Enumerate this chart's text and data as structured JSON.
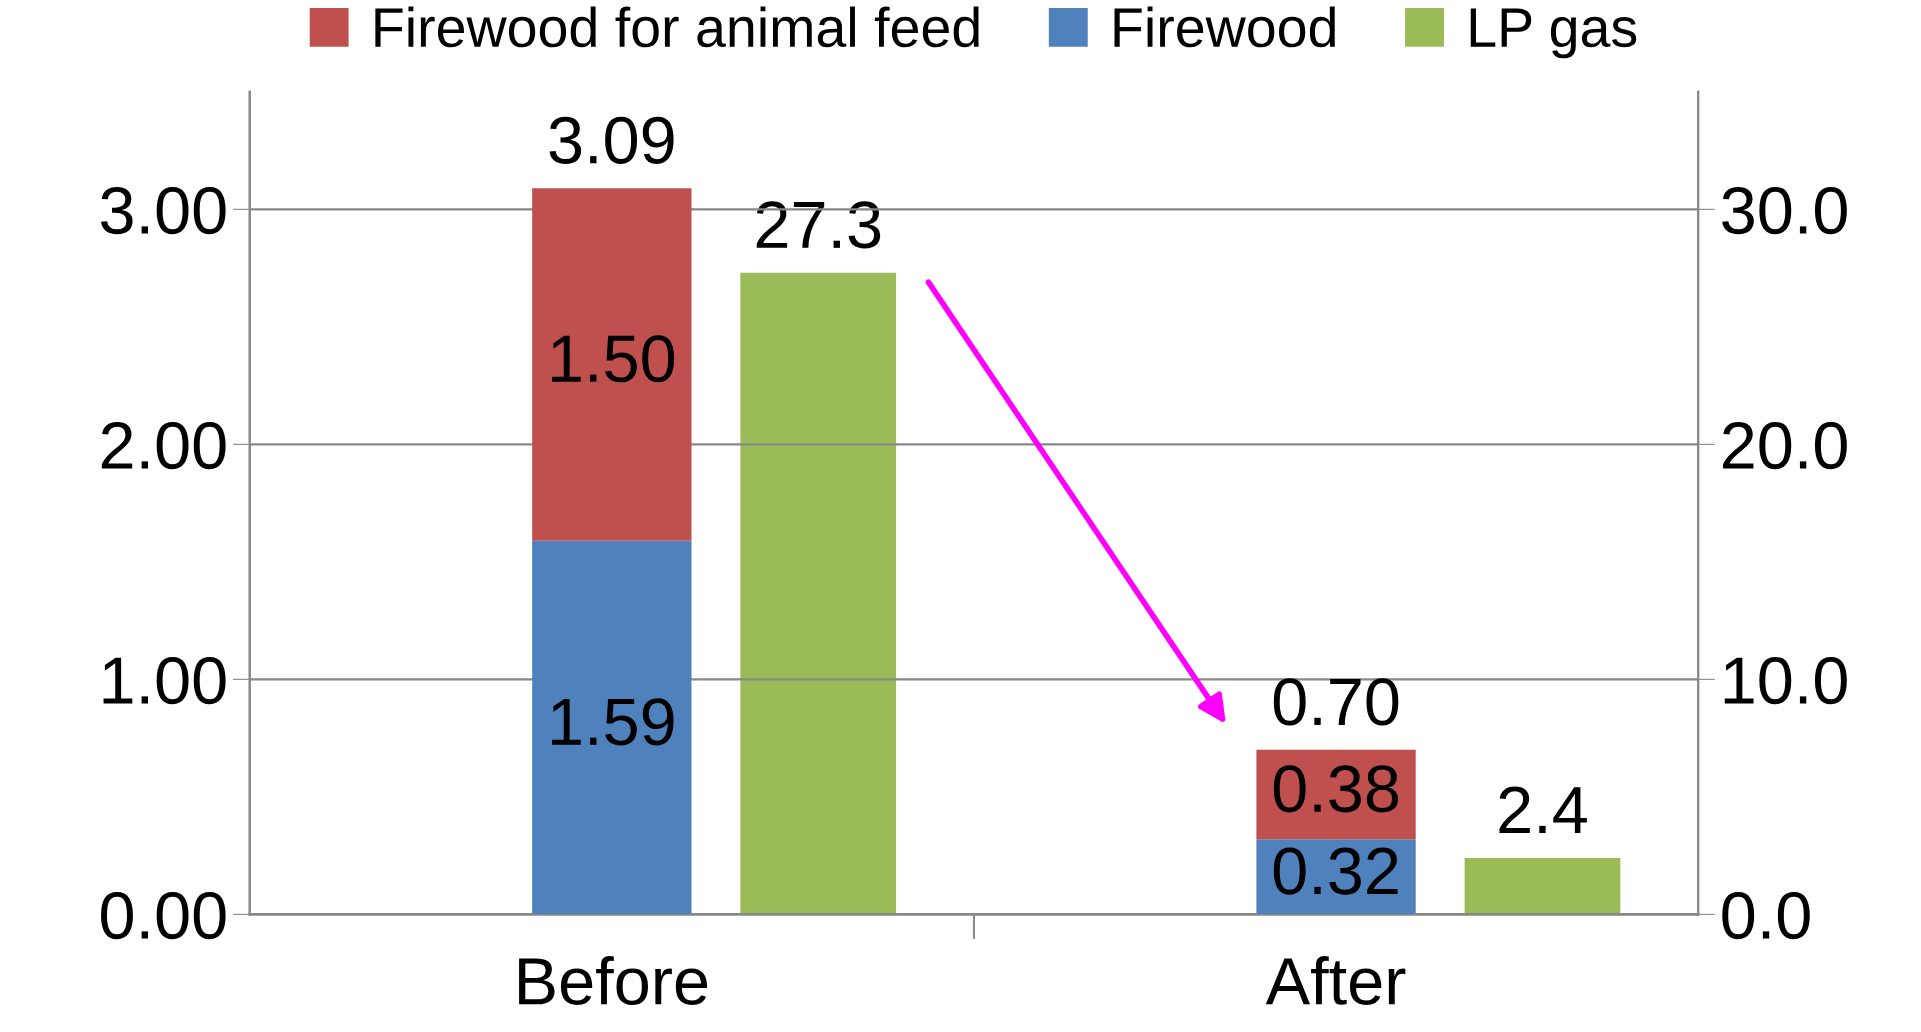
{
  "chart_data": {
    "type": "bar",
    "stacked": true,
    "categories": [
      "Before",
      "After"
    ],
    "series": [
      {
        "name": "Firewood",
        "color": "#4f81bd",
        "values": [
          1.59,
          0.32
        ],
        "value_labels": [
          "1.59",
          "0.32"
        ]
      },
      {
        "name": "Firewood for animal feed",
        "color": "#c0504d",
        "values": [
          1.5,
          0.38
        ],
        "value_labels": [
          "1.50",
          "0.38"
        ]
      },
      {
        "name": "LP gas",
        "color": "#9bbb59",
        "values": [
          27.3,
          2.4
        ],
        "value_labels": [
          "27.3",
          "2.4"
        ],
        "axis": "y2"
      }
    ],
    "totals": [
      "3.09",
      "0.70"
    ],
    "ylim": [
      0,
      3.5
    ],
    "yticks": [
      {
        "value": 0,
        "label": "0.00"
      },
      {
        "value": 1,
        "label": "1.00"
      },
      {
        "value": 2,
        "label": "2.00"
      },
      {
        "value": 3,
        "label": "3.00"
      }
    ],
    "y2lim": [
      0,
      35
    ],
    "y2ticks": [
      {
        "value": 0,
        "label": "0.0"
      },
      {
        "value": 10,
        "label": "10.0"
      },
      {
        "value": 20,
        "label": "20.0"
      },
      {
        "value": 30,
        "label": "30.0"
      }
    ],
    "grid": "y",
    "legend": "top"
  }
}
